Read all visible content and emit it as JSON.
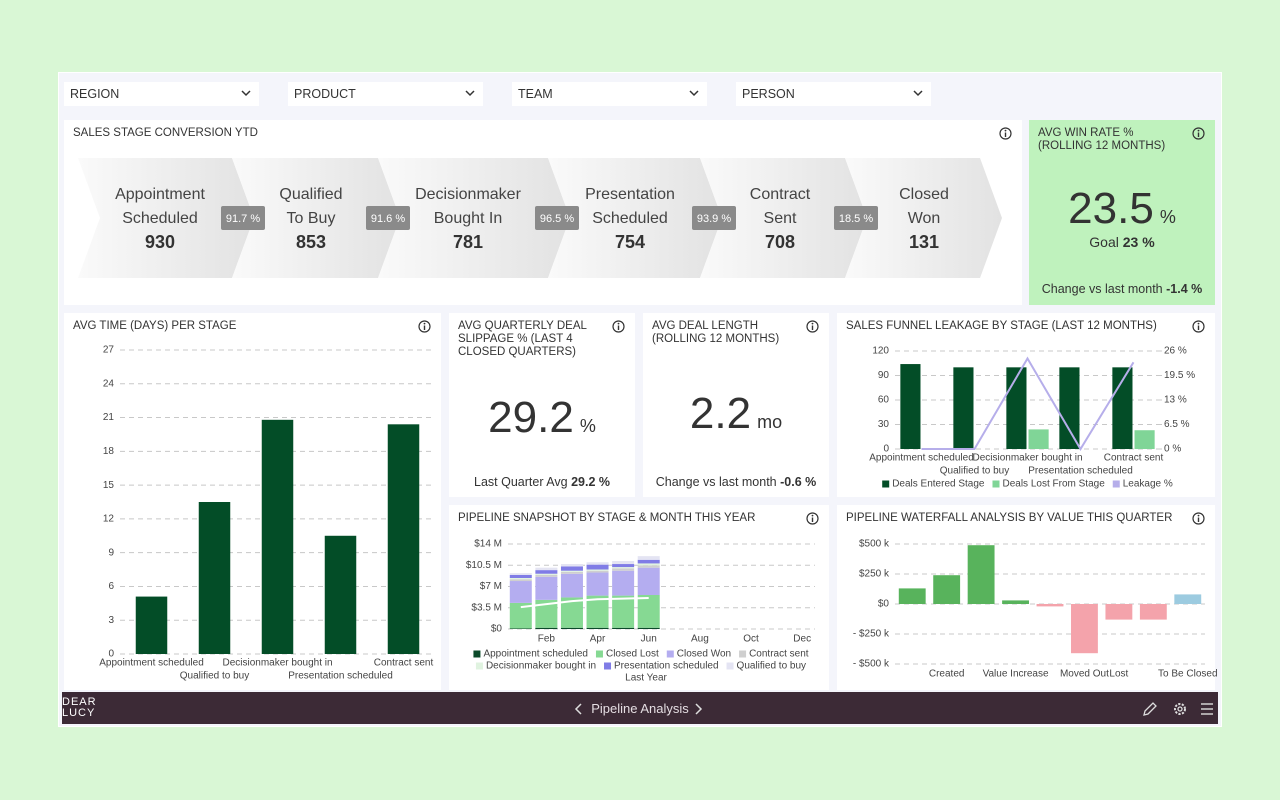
{
  "filters": [
    "REGION",
    "PRODUCT",
    "TEAM",
    "PERSON"
  ],
  "conversion": {
    "title": "SALES STAGE CONVERSION YTD",
    "stages": [
      {
        "name": [
          "Appointment",
          "Scheduled"
        ],
        "count": 930
      },
      {
        "name": [
          "Qualified",
          "To Buy"
        ],
        "count": 853
      },
      {
        "name": [
          "Decisionmaker",
          "Bought In"
        ],
        "count": 781
      },
      {
        "name": [
          "Presentation",
          "Scheduled"
        ],
        "count": 754
      },
      {
        "name": [
          "Contract",
          "Sent"
        ],
        "count": 708
      },
      {
        "name": [
          "Closed",
          "Won"
        ],
        "count": 131
      }
    ],
    "rates": [
      "91.7 %",
      "91.6 %",
      "96.5 %",
      "93.9 %",
      "18.5 %"
    ]
  },
  "kpis": [
    {
      "title": "AVG WIN RATE % (ROLLING 12 MONTHS)",
      "value": "23.5",
      "unit": "%",
      "goal_label": "Goal",
      "goal_value": "23 %",
      "note_label": "Change vs last month",
      "note_value": "-1.4 %"
    },
    {
      "title": "AVG QUARTERLY DEAL SLIPPAGE % (LAST 4 CLOSED QUARTERS)",
      "value": "29.2",
      "unit": "%",
      "note_label": "Last Quarter Avg",
      "note_value": "29.2 %"
    },
    {
      "title": "AVG DEAL LENGTH (ROLLING 12 MONTHS)",
      "value": "2.2",
      "unit": "mo",
      "note_label": "Change vs last month",
      "note_value": "-0.6 %"
    }
  ],
  "chart_data": [
    {
      "type": "bar",
      "title": "AVG TIME (DAYS) PER STAGE",
      "categories": [
        "Appointment scheduled",
        "Qualified to buy",
        "Decisionmaker bought in",
        "Presentation scheduled",
        "Contract sent"
      ],
      "values": [
        5.1,
        13.5,
        20.8,
        10.5,
        20.4
      ],
      "color": "#034d27",
      "ylim": [
        0,
        27
      ],
      "yticks": [
        0,
        3,
        6,
        9,
        12,
        15,
        18,
        21,
        24,
        27
      ],
      "grid": true
    },
    {
      "type": "bar",
      "title": "SALES FUNNEL LEAKAGE BY STAGE (LAST 12 MONTHS)",
      "categories": [
        "Appointment scheduled",
        "Qualified to buy",
        "Decisionmaker bought in",
        "Presentation scheduled",
        "Contract sent"
      ],
      "series": [
        {
          "name": "Deals Entered Stage",
          "color": "#034d27",
          "values": [
            104,
            100,
            100,
            100,
            100
          ]
        },
        {
          "name": "Deals Lost From Stage",
          "color": "#80d597",
          "values": [
            0,
            0,
            24,
            0,
            23
          ]
        },
        {
          "name": "Leakage %",
          "color": "#b6aeea",
          "type": "line",
          "axis": "y2",
          "values": [
            0,
            0,
            24,
            0,
            23
          ]
        }
      ],
      "ylim": [
        0,
        120
      ],
      "yticks": [
        0,
        30,
        60,
        90,
        120
      ],
      "y2lim": [
        0,
        26
      ],
      "y2ticks": [
        {
          "value": 0,
          "label": "0 %"
        },
        {
          "value": 6.5,
          "label": "6.5 %"
        },
        {
          "value": 13,
          "label": "13 %"
        },
        {
          "value": 19.5,
          "label": "19.5 %"
        },
        {
          "value": 26,
          "label": "26 %"
        }
      ],
      "grid": true,
      "legend": "bottom"
    },
    {
      "type": "bar",
      "stacked": true,
      "title": "PIPELINE SNAPSHOT BY STAGE & MONTH THIS YEAR",
      "categories": [
        null,
        "Feb",
        null,
        "Apr",
        null,
        "Jun",
        null,
        "Aug",
        null,
        "Oct",
        null,
        "Dec"
      ],
      "series": [
        {
          "name": "Appointment scheduled",
          "color": "#0b4a2a",
          "values": [
            0.1,
            0.2,
            0.2,
            0.2,
            0.2,
            0.2,
            null,
            null,
            null,
            null,
            null,
            null
          ]
        },
        {
          "name": "Closed Lost",
          "color": "#86d993",
          "values": [
            4.2,
            4.6,
            5.0,
            5.3,
            5.3,
            5.4,
            null,
            null,
            null,
            null,
            null,
            null
          ]
        },
        {
          "name": "Closed Won",
          "color": "#b4adf0",
          "values": [
            3.6,
            3.8,
            3.9,
            3.8,
            4.1,
            4.5,
            null,
            null,
            null,
            null,
            null,
            null
          ]
        },
        {
          "name": "Contract sent",
          "color": "#cfcfcf",
          "values": [
            0.3,
            0.3,
            0.3,
            0.3,
            0.4,
            0.4,
            null,
            null,
            null,
            null,
            null,
            null
          ]
        },
        {
          "name": "Decisionmaker bought in",
          "color": "#e0f3e0",
          "values": [
            0.2,
            0.2,
            0.2,
            0.2,
            0.2,
            0.3,
            null,
            null,
            null,
            null,
            null,
            null
          ]
        },
        {
          "name": "Presentation scheduled",
          "color": "#807ce6",
          "values": [
            0.5,
            0.6,
            0.7,
            0.8,
            0.5,
            0.6,
            null,
            null,
            null,
            null,
            null,
            null
          ]
        },
        {
          "name": "Qualified to buy",
          "color": "#e4e4f3",
          "values": [
            0.3,
            0.4,
            0.4,
            0.4,
            0.5,
            0.6,
            null,
            null,
            null,
            null,
            null,
            null
          ]
        },
        {
          "name": "Last Year",
          "color": "#ffffff",
          "type": "line",
          "values": [
            3.6,
            4.1,
            4.6,
            4.9,
            5.0,
            5.1,
            null,
            null,
            null,
            null,
            null,
            null
          ]
        }
      ],
      "ylim": [
        0,
        14
      ],
      "yticks": [
        {
          "value": 0,
          "label": "$0"
        },
        {
          "value": 3.5,
          "label": "$3.5 M"
        },
        {
          "value": 7,
          "label": "$7 M"
        },
        {
          "value": 10.5,
          "label": "$10.5 M"
        },
        {
          "value": 14,
          "label": "$14 M"
        }
      ],
      "grid": true,
      "legend": "bottom"
    },
    {
      "type": "bar",
      "title": "PIPELINE WATERFALL ANALYSIS BY VALUE THIS QUARTER",
      "categories": [
        null,
        "Created",
        null,
        "Value Increase",
        null,
        "Moved Out",
        "Lost",
        null,
        "To Be Closed"
      ],
      "values": [
        130,
        240,
        490,
        30,
        -20,
        -410,
        -130,
        -130,
        80
      ],
      "colors": [
        "#58b35c",
        "#58b35c",
        "#58b35c",
        "#58b35c",
        "#f4a3ab",
        "#f4a3ab",
        "#f4a3ab",
        "#f4a3ab",
        "#9ccbe0"
      ],
      "ylim": [
        -500,
        500
      ],
      "yticks": [
        {
          "value": -500,
          "label": "- $500 k"
        },
        {
          "value": -250,
          "label": "- $250 k"
        },
        {
          "value": 0,
          "label": "$0"
        },
        {
          "value": 250,
          "label": "$250 k"
        },
        {
          "value": 500,
          "label": "$500 k"
        }
      ],
      "grid": true
    }
  ],
  "footer": {
    "logo": [
      "DEAR",
      "LUCY"
    ],
    "page": "Pipeline Analysis"
  }
}
